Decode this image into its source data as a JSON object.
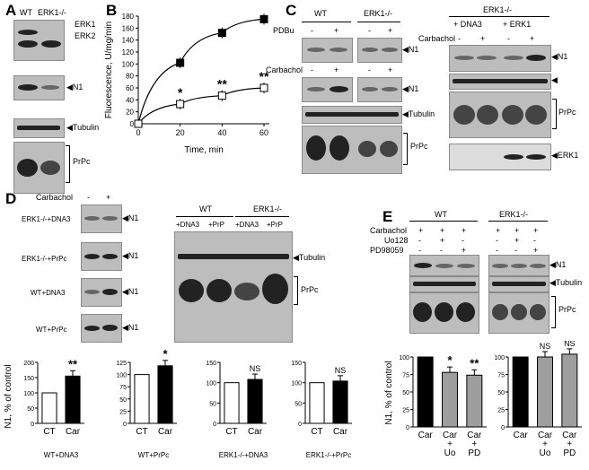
{
  "panels": {
    "A": {
      "label": "A",
      "lanes": [
        "WT",
        "ERK1-/-"
      ],
      "markers": [
        "ERK1",
        "ERK2",
        "N1",
        "Tubulin",
        "PrPc"
      ]
    },
    "B": {
      "label": "B",
      "chart_data": {
        "type": "line",
        "ylabel": "Fluorescence, U/mg/min",
        "xlabel": "Time, min",
        "x": [
          0,
          20,
          40,
          60
        ],
        "xlim": [
          0,
          60
        ],
        "ylim": [
          0,
          180
        ],
        "xticks": [
          0,
          20,
          40,
          60
        ],
        "yticks": [
          0,
          20,
          40,
          60,
          80,
          100,
          120,
          140,
          160,
          180
        ],
        "series": [
          {
            "marker": "filled-square",
            "values": [
              0,
              102,
              152,
              175
            ]
          },
          {
            "marker": "open-square",
            "values": [
              0,
              33,
              47,
              60
            ],
            "significance": [
              "",
              "*",
              "**",
              "**"
            ]
          }
        ]
      }
    },
    "C": {
      "label": "C",
      "left_groups": [
        "WT",
        "ERK1-/-"
      ],
      "pdbu_label": "PDBu",
      "carbachol_label": "Carbachol",
      "signs": [
        "-",
        "+",
        "-",
        "+"
      ],
      "markers": [
        "N1",
        "N1",
        "Tubulin",
        "PrPc"
      ],
      "right_title": "ERK1-/-",
      "right_groups": [
        "+ DNA3",
        "+ ERK1"
      ],
      "right_carbachol": "Carbachol",
      "right_markers": [
        "N1",
        "PrPc",
        "ERK1"
      ]
    },
    "D": {
      "label": "D",
      "carbachol_label": "Carbachol",
      "signs": [
        "-",
        "+"
      ],
      "blot_rows": [
        "ERK1-/-+DNA3",
        "ERK1-/-+PrPc",
        "WT+DNA3",
        "WT+PrPc"
      ],
      "n1_marker": "N1",
      "right_groups": [
        "WT",
        "ERK1-/-"
      ],
      "right_lanes": [
        "+DNA3",
        "+PrP",
        "+DNA3",
        "+PrP"
      ],
      "right_markers": [
        "Tubulin",
        "PrPc"
      ],
      "ylabel": "N1, % of control",
      "chart_data": [
        {
          "type": "bar",
          "categories": [
            "CT",
            "Car"
          ],
          "values": [
            100,
            155
          ],
          "ylim": [
            0,
            200
          ],
          "yticks": [
            0,
            50,
            100,
            150,
            200
          ],
          "xlabel": "WT+DNA3",
          "significance": "**"
        },
        {
          "type": "bar",
          "categories": [
            "CT",
            "Car"
          ],
          "values": [
            100,
            118
          ],
          "ylim": [
            0,
            125
          ],
          "yticks": [
            0,
            25,
            50,
            75,
            100,
            125
          ],
          "xlabel": "WT+PrPc",
          "significance": "*"
        },
        {
          "type": "bar",
          "categories": [
            "CT",
            "Car"
          ],
          "values": [
            100,
            108
          ],
          "ylim": [
            0,
            150
          ],
          "yticks": [
            0,
            50,
            100,
            150
          ],
          "xlabel": "ERK1-/-+DNA3",
          "significance": "NS"
        },
        {
          "type": "bar",
          "categories": [
            "CT",
            "Car"
          ],
          "values": [
            100,
            104
          ],
          "ylim": [
            0,
            150
          ],
          "yticks": [
            0,
            50,
            100,
            150
          ],
          "xlabel": "ERK1-/-+PrPc",
          "significance": "NS"
        }
      ]
    },
    "E": {
      "label": "E",
      "groups": [
        "WT",
        "ERK1-/-"
      ],
      "row_labels": [
        "Carbachol",
        "Uo128",
        "PD98059"
      ],
      "sign_rows": [
        [
          "+",
          "+",
          "+"
        ],
        [
          "-",
          "+",
          "-"
        ],
        [
          "-",
          "-",
          "+"
        ]
      ],
      "markers": [
        "N1",
        "Tubulin",
        "PrPc"
      ],
      "ylabel": "N1, % of control",
      "chart_data": [
        {
          "type": "bar",
          "categories": [
            "Car",
            "Car + Uo",
            "Car + PD"
          ],
          "values": [
            100,
            78,
            74
          ],
          "ylim": [
            0,
            100
          ],
          "yticks": [
            0,
            25,
            50,
            75,
            100
          ],
          "significance": [
            "",
            "*",
            "**"
          ]
        },
        {
          "type": "bar",
          "categories": [
            "Car",
            "Car + Uo",
            "Car + PD"
          ],
          "values": [
            100,
            100,
            104
          ],
          "ylim": [
            0,
            100
          ],
          "yticks": [
            0,
            25,
            50,
            75,
            100
          ],
          "significance": [
            "",
            "NS",
            "NS"
          ]
        }
      ]
    }
  }
}
